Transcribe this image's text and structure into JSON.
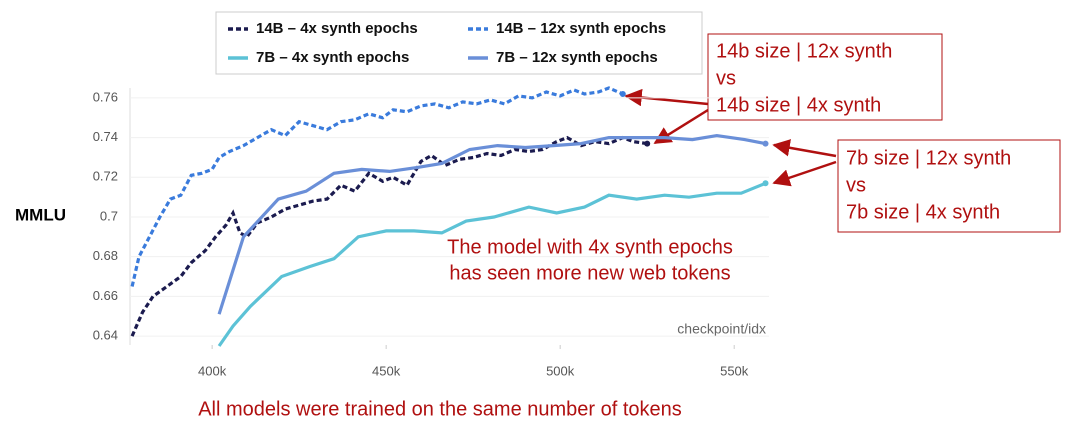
{
  "chart_data": {
    "type": "line",
    "y_label": "MMLU",
    "x_label": "checkpoint/idx",
    "xlim": [
      376.4,
      560
    ],
    "ylim": [
      0.6355,
      0.765
    ],
    "xticks": [
      {
        "value": 400,
        "label": "400k"
      },
      {
        "value": 450,
        "label": "450k"
      },
      {
        "value": 500,
        "label": "500k"
      },
      {
        "value": 550,
        "label": "550k"
      }
    ],
    "yticks": [
      0.64,
      0.66,
      0.68,
      0.7,
      0.72,
      0.74,
      0.76
    ],
    "grid": true,
    "series": [
      {
        "name": "14B – 4x synth epochs",
        "color": "#1b1b4f",
        "dashed": true,
        "x": [
          377,
          380,
          383,
          387,
          391,
          394,
          398,
          401,
          404,
          406,
          408,
          410,
          413,
          417,
          421,
          425,
          429,
          433,
          437,
          441,
          445,
          449,
          452,
          456,
          460,
          463,
          467,
          471,
          475,
          479,
          483,
          487,
          491,
          495,
          499,
          502,
          506,
          510,
          514,
          518,
          521,
          525
        ],
        "values": [
          0.64,
          0.652,
          0.66,
          0.665,
          0.67,
          0.677,
          0.683,
          0.69,
          0.696,
          0.702,
          0.692,
          0.69,
          0.697,
          0.7,
          0.704,
          0.706,
          0.708,
          0.709,
          0.716,
          0.713,
          0.722,
          0.718,
          0.72,
          0.716,
          0.728,
          0.731,
          0.726,
          0.729,
          0.73,
          0.732,
          0.731,
          0.734,
          0.733,
          0.734,
          0.738,
          0.74,
          0.736,
          0.738,
          0.737,
          0.74,
          0.738,
          0.737
        ]
      },
      {
        "name": "14B – 12x synth epochs",
        "color": "#3a7bdc",
        "dashed": true,
        "x": [
          377,
          379,
          382,
          385,
          388,
          391,
          394,
          397,
          400,
          402,
          405,
          409,
          413,
          417,
          421,
          425,
          429,
          433,
          437,
          441,
          445,
          449,
          452,
          456,
          460,
          464,
          468,
          472,
          476,
          480,
          484,
          488,
          492,
          496,
          500,
          504,
          507,
          511,
          514,
          518
        ],
        "values": [
          0.665,
          0.68,
          0.69,
          0.7,
          0.709,
          0.711,
          0.721,
          0.722,
          0.724,
          0.73,
          0.733,
          0.736,
          0.74,
          0.744,
          0.741,
          0.748,
          0.746,
          0.744,
          0.748,
          0.749,
          0.752,
          0.75,
          0.754,
          0.753,
          0.756,
          0.757,
          0.755,
          0.758,
          0.757,
          0.759,
          0.757,
          0.761,
          0.76,
          0.763,
          0.761,
          0.764,
          0.762,
          0.763,
          0.765,
          0.762
        ]
      },
      {
        "name": "7B – 4x synth epochs",
        "color": "#5cc2d6",
        "dashed": false,
        "x": [
          402,
          406,
          411,
          420,
          428,
          435,
          442,
          450,
          458,
          466,
          473,
          481,
          491,
          499,
          507,
          514,
          522,
          530,
          537,
          545,
          552,
          559
        ],
        "values": [
          0.635,
          0.645,
          0.655,
          0.67,
          0.675,
          0.679,
          0.69,
          0.693,
          0.693,
          0.692,
          0.698,
          0.7,
          0.705,
          0.702,
          0.705,
          0.711,
          0.709,
          0.711,
          0.71,
          0.712,
          0.712,
          0.717
        ]
      },
      {
        "name": "7B – 12x synth epochs",
        "color": "#6a8fd8",
        "dashed": false,
        "x": [
          402,
          409,
          419,
          427,
          435,
          443,
          451,
          459,
          466,
          474,
          482,
          490,
          498,
          506,
          514,
          522,
          530,
          538,
          545,
          553,
          559
        ],
        "values": [
          0.651,
          0.69,
          0.709,
          0.713,
          0.722,
          0.724,
          0.723,
          0.725,
          0.727,
          0.734,
          0.736,
          0.735,
          0.736,
          0.737,
          0.74,
          0.74,
          0.74,
          0.739,
          0.741,
          0.739,
          0.737
        ]
      }
    ],
    "callouts": [
      {
        "lines": [
          "14b size | 12x synth",
          "vs",
          "14b size | 4x synth"
        ]
      },
      {
        "lines": [
          "7b size | 12x synth",
          "vs",
          "7b size | 4x synth"
        ]
      }
    ],
    "note_lines": [
      "The model with 4x synth epochs",
      "has seen more new web tokens"
    ],
    "caption": "All models were trained on the same number of tokens"
  }
}
